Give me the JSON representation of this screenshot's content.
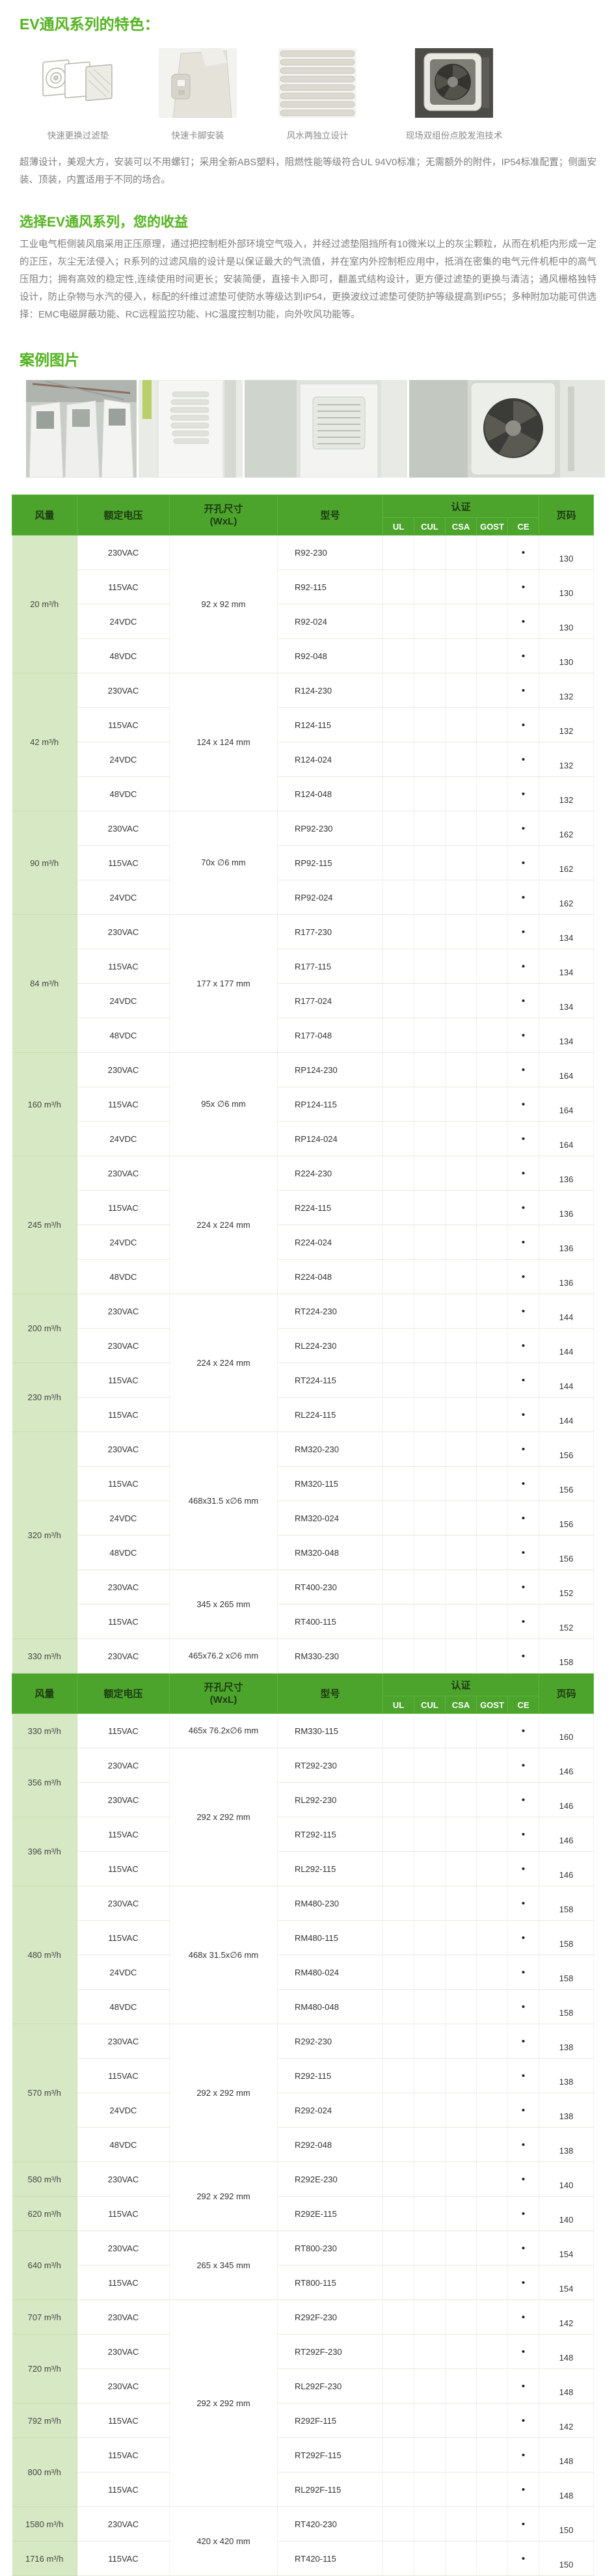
{
  "colors": {
    "header_green": "#4ca42d",
    "flow_column_green": "#d7e8c4",
    "accent_green": "#53b42c"
  },
  "features": {
    "title": "EV通风系列的特色：",
    "items": [
      {
        "caption": "快速更换过滤垫",
        "icon": "filter-exploded-icon"
      },
      {
        "caption": "快速卡脚安装",
        "icon": "snap-foot-icon"
      },
      {
        "caption": "风水两独立设计",
        "icon": "louver-icon"
      },
      {
        "caption": "现场双组份点胶发泡技术",
        "icon": "foam-gasket-icon"
      }
    ],
    "description": "超薄设计，美观大方，安装可以不用螺钉；采用全新ABS塑料，阻燃性能等级符合UL 94V0标准；无需额外的附件，IP54标准配置；侧面安装、顶装，内置适用于不同的场合。"
  },
  "benefits": {
    "title": "选择EV通风系列，您的收益",
    "description": "工业电气柜侧装风扇采用正压原理，通过把控制柜外部环境空气吸入，并经过滤垫阻挡所有10微米以上的灰尘颗粒，从而在机柜内形成一定的正压，灰尘无法侵入；R系列的过滤风扇的设计是以保证最大的气流值，并在室内外控制柜应用中，抵消在密集的电气元件机柜中的高气压阻力；拥有高效的稳定性,连续使用时间更长；安装简便，直接卡入即可，翻盖式结构设计，更方便过滤垫的更换与清洁；通风栅格独特设计，防止杂物与水汽的侵入，标配的纤维过滤垫可使防水等级达到IP54，更换波纹过滤垫可使防护等级提高到IP55；多种附加功能可供选择：EMC电磁屏蔽功能、RC远程监控功能、HC温度控制功能，向外吹风功能等。"
  },
  "cases": {
    "title": "案例图片",
    "photos": [
      "factory-cabinets-photo",
      "cabinet-vent-photo",
      "cabinet-filter-photo",
      "fan-module-photo"
    ]
  },
  "table": {
    "headers": {
      "flow": "风量",
      "voltage": "额定电压",
      "size_line1": "开孔尺寸",
      "size_line2": "(WxL)",
      "model": "型号",
      "cert": "认证",
      "cert_cols": [
        "UL",
        "CUL",
        "CSA",
        "GOST",
        "CE"
      ],
      "page": "页码"
    },
    "cert_mark": "•",
    "sections": [
      {
        "rows": [
          {
            "f": {
              "t": "20 m³/h",
              "s": 4
            },
            "v": "230VAC",
            "d": {
              "t": "92 x 92 mm",
              "s": 4
            },
            "m": "R92-230",
            "c": [
              "CE"
            ],
            "p": "130"
          },
          {
            "v": "115VAC",
            "m": "R92-115",
            "c": [
              "CE"
            ],
            "p": "130"
          },
          {
            "v": "24VDC",
            "m": "R92-024",
            "c": [
              "CE"
            ],
            "p": "130"
          },
          {
            "v": "48VDC",
            "m": "R92-048",
            "c": [
              "CE"
            ],
            "p": "130"
          },
          {
            "f": {
              "t": "42 m³/h",
              "s": 4
            },
            "v": "230VAC",
            "d": {
              "t": "124 x 124 mm",
              "s": 4
            },
            "m": "R124-230",
            "c": [
              "CE"
            ],
            "p": "132"
          },
          {
            "v": "115VAC",
            "m": "R124-115",
            "c": [
              "CE"
            ],
            "p": "132"
          },
          {
            "v": "24VDC",
            "m": "R124-024",
            "c": [
              "CE"
            ],
            "p": "132"
          },
          {
            "v": "48VDC",
            "m": "R124-048",
            "c": [
              "CE"
            ],
            "p": "132"
          },
          {
            "f": {
              "t": "90 m³/h",
              "s": 3
            },
            "v": "230VAC",
            "d": {
              "t": "70x ∅6 mm",
              "s": 3
            },
            "m": "RP92-230",
            "c": [
              "CE"
            ],
            "p": "162"
          },
          {
            "v": "115VAC",
            "m": "RP92-115",
            "c": [
              "CE"
            ],
            "p": "162"
          },
          {
            "v": "24VDC",
            "m": "RP92-024",
            "c": [
              "CE"
            ],
            "p": "162"
          },
          {
            "f": {
              "t": "84 m³/h",
              "s": 4
            },
            "v": "230VAC",
            "d": {
              "t": "177 x 177 mm",
              "s": 4
            },
            "m": "R177-230",
            "c": [
              "CE"
            ],
            "p": "134"
          },
          {
            "v": "115VAC",
            "m": "R177-115",
            "c": [
              "CE"
            ],
            "p": "134"
          },
          {
            "v": "24VDC",
            "m": "R177-024",
            "c": [
              "CE"
            ],
            "p": "134"
          },
          {
            "v": "48VDC",
            "m": "R177-048",
            "c": [
              "CE"
            ],
            "p": "134"
          },
          {
            "f": {
              "t": "160 m³/h",
              "s": 3
            },
            "v": "230VAC",
            "d": {
              "t": "95x ∅6 mm",
              "s": 3
            },
            "m": "RP124-230",
            "c": [
              "CE"
            ],
            "p": "164"
          },
          {
            "v": "115VAC",
            "m": "RP124-115",
            "c": [
              "CE"
            ],
            "p": "164"
          },
          {
            "v": "24VDC",
            "m": "RP124-024",
            "c": [
              "CE"
            ],
            "p": "164"
          },
          {
            "f": {
              "t": "245 m³/h",
              "s": 4
            },
            "v": "230VAC",
            "d": {
              "t": "224 x 224 mm",
              "s": 4
            },
            "m": "R224-230",
            "c": [
              "CE"
            ],
            "p": "136"
          },
          {
            "v": "115VAC",
            "m": "R224-115",
            "c": [
              "CE"
            ],
            "p": "136"
          },
          {
            "v": "24VDC",
            "m": "R224-024",
            "c": [
              "CE"
            ],
            "p": "136"
          },
          {
            "v": "48VDC",
            "m": "R224-048",
            "c": [
              "CE"
            ],
            "p": "136"
          },
          {
            "f": {
              "t": "200 m³/h",
              "s": 2
            },
            "v": "230VAC",
            "d": {
              "t": "224 x 224 mm",
              "s": 4
            },
            "m": "RT224-230",
            "c": [
              "CE"
            ],
            "p": "144"
          },
          {
            "v": "230VAC",
            "m": "RL224-230",
            "c": [
              "CE"
            ],
            "p": "144"
          },
          {
            "f": {
              "t": "230 m³/h",
              "s": 2
            },
            "v": "115VAC",
            "m": "RT224-115",
            "c": [
              "CE"
            ],
            "p": "144"
          },
          {
            "v": "115VAC",
            "m": "RL224-115",
            "c": [
              "CE"
            ],
            "p": "144"
          },
          {
            "f": {
              "t": "320 m³/h",
              "s": 6
            },
            "v": "230VAC",
            "d": {
              "t": "468x31.5 x∅6 mm",
              "s": 4
            },
            "m": "RM320-230",
            "c": [
              "CE"
            ],
            "p": "156"
          },
          {
            "v": "115VAC",
            "m": "RM320-115",
            "c": [
              "CE"
            ],
            "p": "156"
          },
          {
            "v": "24VDC",
            "m": "RM320-024",
            "c": [
              "CE"
            ],
            "p": "156"
          },
          {
            "v": "48VDC",
            "m": "RM320-048",
            "c": [
              "CE"
            ],
            "p": "156"
          },
          {
            "v": "230VAC",
            "d": {
              "t": "345 x 265 mm",
              "s": 2
            },
            "m": "RT400-230",
            "c": [
              "CE"
            ],
            "p": "152"
          },
          {
            "v": "115VAC",
            "m": "RT400-115",
            "c": [
              "CE"
            ],
            "p": "152"
          },
          {
            "f": {
              "t": "330 m³/h",
              "s": 1
            },
            "v": "230VAC",
            "d": {
              "t": "465x76.2 x∅6 mm",
              "s": 1
            },
            "m": "RM330-230",
            "c": [
              "CE"
            ],
            "p": "158"
          }
        ]
      },
      {
        "rows": [
          {
            "f": {
              "t": "330 m³/h",
              "s": 1
            },
            "v": "115VAC",
            "d": {
              "t": "465x 76.2x∅6 mm",
              "s": 1
            },
            "m": "RM330-115",
            "c": [
              "CE"
            ],
            "p": "160"
          },
          {
            "f": {
              "t": "356 m³/h",
              "s": 2
            },
            "v": "230VAC",
            "d": {
              "t": "292 x 292 mm",
              "s": 4
            },
            "m": "RT292-230",
            "c": [
              "CE"
            ],
            "p": "146"
          },
          {
            "v": "230VAC",
            "m": "RL292-230",
            "c": [
              "CE"
            ],
            "p": "146"
          },
          {
            "f": {
              "t": "396 m³/h",
              "s": 2
            },
            "v": "115VAC",
            "m": "RT292-115",
            "c": [
              "CE"
            ],
            "p": "146"
          },
          {
            "v": "115VAC",
            "m": "RL292-115",
            "c": [
              "CE"
            ],
            "p": "146"
          },
          {
            "f": {
              "t": "480 m³/h",
              "s": 4
            },
            "v": "230VAC",
            "d": {
              "t": "468x 31.5x∅6 mm",
              "s": 4
            },
            "m": "RM480-230",
            "c": [
              "CE"
            ],
            "p": "158"
          },
          {
            "v": "115VAC",
            "m": "RM480-115",
            "c": [
              "CE"
            ],
            "p": "158"
          },
          {
            "v": "24VDC",
            "m": "RM480-024",
            "c": [
              "CE"
            ],
            "p": "158"
          },
          {
            "v": "48VDC",
            "m": "RM480-048",
            "c": [
              "CE"
            ],
            "p": "158"
          },
          {
            "f": {
              "t": "570 m³/h",
              "s": 4
            },
            "v": "230VAC",
            "d": {
              "t": "292 x 292 mm",
              "s": 4
            },
            "m": "R292-230",
            "c": [
              "CE"
            ],
            "p": "138"
          },
          {
            "v": "115VAC",
            "m": "R292-115",
            "c": [
              "CE"
            ],
            "p": "138"
          },
          {
            "v": "24VDC",
            "m": "R292-024",
            "c": [
              "CE"
            ],
            "p": "138"
          },
          {
            "v": "48VDC",
            "m": "R292-048",
            "c": [
              "CE"
            ],
            "p": "138"
          },
          {
            "f": {
              "t": "580 m³/h",
              "s": 1
            },
            "v": "230VAC",
            "d": {
              "t": "292 x 292 mm",
              "s": 2
            },
            "m": "R292E-230",
            "c": [
              "CE"
            ],
            "p": "140"
          },
          {
            "f": {
              "t": "620 m³/h",
              "s": 1
            },
            "v": "115VAC",
            "m": "R292E-115",
            "c": [
              "CE"
            ],
            "p": "140"
          },
          {
            "f": {
              "t": "640 m³/h",
              "s": 2
            },
            "v": "230VAC",
            "d": {
              "t": "265 x 345 mm",
              "s": 2
            },
            "m": "RT800-230",
            "c": [
              "CE"
            ],
            "p": "154"
          },
          {
            "v": "115VAC",
            "m": "RT800-115",
            "c": [
              "CE"
            ],
            "p": "154"
          },
          {
            "f": {
              "t": "707 m³/h",
              "s": 1
            },
            "v": "230VAC",
            "d": {
              "t": "292 x 292 mm",
              "s": 6
            },
            "m": "R292F-230",
            "c": [
              "CE"
            ],
            "p": "142"
          },
          {
            "f": {
              "t": "720 m³/h",
              "s": 2
            },
            "v": "230VAC",
            "m": "RT292F-230",
            "c": [
              "CE"
            ],
            "p": "148"
          },
          {
            "v": "230VAC",
            "m": "RL292F-230",
            "c": [
              "CE"
            ],
            "p": "148"
          },
          {
            "f": {
              "t": "792 m³/h",
              "s": 1
            },
            "v": "115VAC",
            "m": "R292F-115",
            "c": [
              "CE"
            ],
            "p": "142"
          },
          {
            "f": {
              "t": "800 m³/h",
              "s": 2
            },
            "v": "115VAC",
            "m": "RT292F-115",
            "c": [
              "CE"
            ],
            "p": "148"
          },
          {
            "v": "115VAC",
            "m": "RL292F-115",
            "c": [
              "CE"
            ],
            "p": "148"
          },
          {
            "f": {
              "t": "1580 m³/h",
              "s": 1
            },
            "v": "230VAC",
            "d": {
              "t": "420 x 420 mm",
              "s": 2
            },
            "m": "RT420-230",
            "c": [
              "CE"
            ],
            "p": "150"
          },
          {
            "f": {
              "t": "1716 m³/h",
              "s": 1
            },
            "v": "115VAC",
            "m": "RT420-115",
            "c": [
              "CE"
            ],
            "p": "150"
          }
        ]
      }
    ]
  }
}
